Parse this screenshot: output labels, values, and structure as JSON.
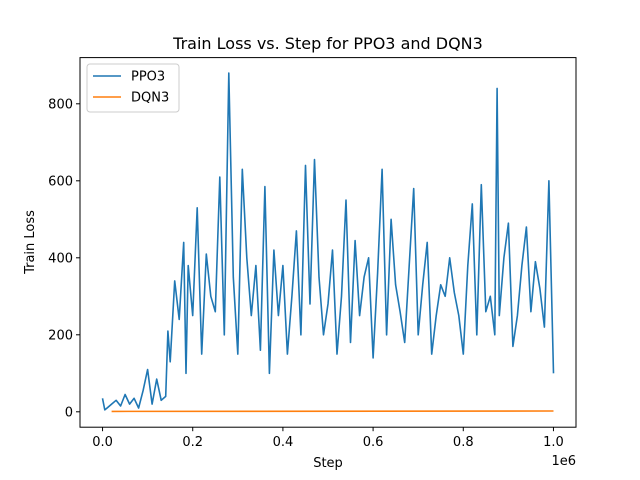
{
  "chart_data": {
    "type": "line",
    "title": "Train Loss vs. Step for PPO3 and DQN3",
    "xlabel": "Step",
    "ylabel": "Train Loss",
    "x_scale_label": "1e6",
    "xlim": [
      -0.05,
      1.05
    ],
    "ylim": [
      -40,
      920
    ],
    "x_ticks": [
      0.0,
      0.2,
      0.4,
      0.6,
      0.8,
      1.0
    ],
    "x_tick_labels": [
      "0.0",
      "0.2",
      "0.4",
      "0.6",
      "0.8",
      "1.0"
    ],
    "y_ticks": [
      0,
      200,
      400,
      600,
      800
    ],
    "y_tick_labels": [
      "0",
      "200",
      "400",
      "600",
      "800"
    ],
    "legend_position": "top-left",
    "grid": false,
    "series": [
      {
        "name": "PPO3",
        "color": "#1f77b4",
        "x": [
          0.0,
          0.005,
          0.01,
          0.02,
          0.03,
          0.04,
          0.05,
          0.06,
          0.07,
          0.08,
          0.09,
          0.1,
          0.11,
          0.12,
          0.13,
          0.14,
          0.145,
          0.15,
          0.16,
          0.17,
          0.18,
          0.185,
          0.19,
          0.2,
          0.21,
          0.22,
          0.23,
          0.24,
          0.25,
          0.26,
          0.27,
          0.28,
          0.29,
          0.3,
          0.31,
          0.32,
          0.33,
          0.34,
          0.35,
          0.36,
          0.37,
          0.38,
          0.39,
          0.4,
          0.41,
          0.42,
          0.43,
          0.44,
          0.45,
          0.46,
          0.47,
          0.48,
          0.49,
          0.5,
          0.51,
          0.52,
          0.53,
          0.54,
          0.55,
          0.56,
          0.57,
          0.58,
          0.59,
          0.6,
          0.61,
          0.62,
          0.63,
          0.64,
          0.65,
          0.66,
          0.67,
          0.68,
          0.69,
          0.7,
          0.71,
          0.72,
          0.73,
          0.74,
          0.75,
          0.76,
          0.77,
          0.78,
          0.79,
          0.8,
          0.81,
          0.82,
          0.83,
          0.84,
          0.85,
          0.86,
          0.87,
          0.875,
          0.88,
          0.89,
          0.9,
          0.91,
          0.92,
          0.93,
          0.94,
          0.95,
          0.96,
          0.97,
          0.98,
          0.99,
          1.0
        ],
        "values": [
          35,
          5,
          10,
          20,
          30,
          15,
          45,
          20,
          35,
          10,
          55,
          110,
          20,
          85,
          30,
          40,
          210,
          130,
          340,
          240,
          440,
          100,
          380,
          250,
          530,
          150,
          410,
          300,
          260,
          610,
          200,
          880,
          350,
          150,
          630,
          400,
          250,
          380,
          160,
          585,
          100,
          420,
          250,
          380,
          150,
          300,
          470,
          200,
          640,
          280,
          655,
          350,
          200,
          280,
          420,
          150,
          300,
          550,
          180,
          445,
          250,
          350,
          400,
          140,
          360,
          630,
          200,
          500,
          330,
          260,
          180,
          380,
          580,
          200,
          330,
          440,
          150,
          250,
          330,
          300,
          400,
          310,
          250,
          150,
          380,
          540,
          200,
          590,
          260,
          300,
          200,
          840,
          250,
          400,
          490,
          170,
          250,
          380,
          480,
          260,
          390,
          320,
          220,
          600,
          100
        ]
      },
      {
        "name": "DQN3",
        "color": "#ff7f0e",
        "x": [
          0.02,
          1.0
        ],
        "values": [
          1,
          2
        ]
      }
    ]
  }
}
